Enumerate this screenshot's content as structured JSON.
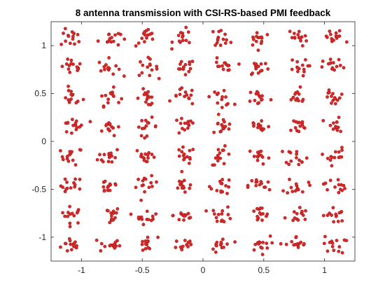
{
  "chart_data": {
    "type": "scatter",
    "title": "8 antenna transmission with CSI-RS-based PMI feedback",
    "xlabel": "",
    "ylabel": "",
    "xlim": [
      -1.25,
      1.25
    ],
    "ylim": [
      -1.25,
      1.25
    ],
    "x_ticks": [
      -1,
      -0.5,
      0,
      0.5,
      1
    ],
    "x_tick_labels": [
      "-1",
      "-0.5",
      "0",
      "0.5",
      "1"
    ],
    "y_ticks": [
      -1,
      -0.5,
      0,
      0.5,
      1
    ],
    "y_tick_labels": [
      "-1",
      "-0.5",
      "0",
      "0.5",
      "1"
    ],
    "grid": false,
    "marker_color": "#d42a2a",
    "marker_edge_color": "#b21a1a",
    "constellation": {
      "description_levels": [
        -1.0801,
        -0.7715,
        -0.4629,
        -0.1543,
        0.1543,
        0.4629,
        0.7715,
        1.0801
      ],
      "points_per_cluster": 14,
      "spread": 0.045
    }
  }
}
